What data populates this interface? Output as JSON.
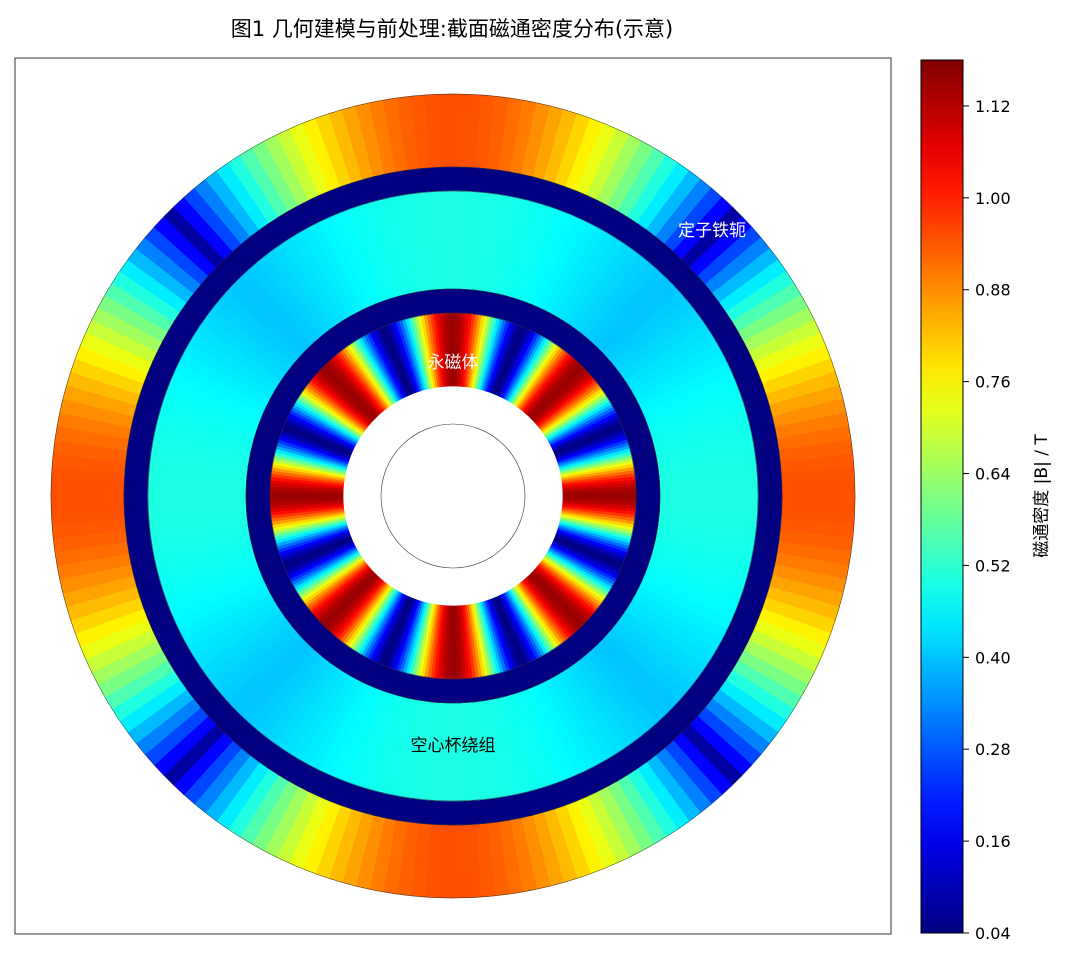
{
  "chart_data": {
    "type": "heatmap",
    "title": "图1 几何建模与前处理:截面磁通密度分布(示意)",
    "colormap": "jet",
    "regions": [
      {
        "name": "永磁体",
        "label_color": "#ffffff",
        "r_inner": 0.19,
        "r_outer": 0.48,
        "poles": 4,
        "b_min": 0.04,
        "b_max": 1.15
      },
      {
        "name": "空心杯绕组",
        "label_color": "#000000",
        "r_inner": 0.8,
        "r_outer": 1.0,
        "poles": 4,
        "b_min": 0.28,
        "b_max": 0.5
      },
      {
        "name": "定子铁轭",
        "label_color": "#ffffff",
        "r_inner": 1.05,
        "r_outer": 1.05,
        "poles": 4,
        "b_min": 0.08,
        "b_max": 0.95
      },
      {
        "name": "gap",
        "label_color": "",
        "r_inner": 0.48,
        "r_outer": 0.54,
        "poles": 0,
        "b_min": 0.04,
        "b_max": 0.04
      }
    ],
    "colorbar": {
      "label": "磁通密度 |B| / T",
      "range": [
        0.04,
        1.18
      ],
      "ticks": [
        "0.04",
        "0.16",
        "0.28",
        "0.40",
        "0.52",
        "0.64",
        "0.76",
        "0.88",
        "1.00",
        "1.12"
      ]
    }
  }
}
